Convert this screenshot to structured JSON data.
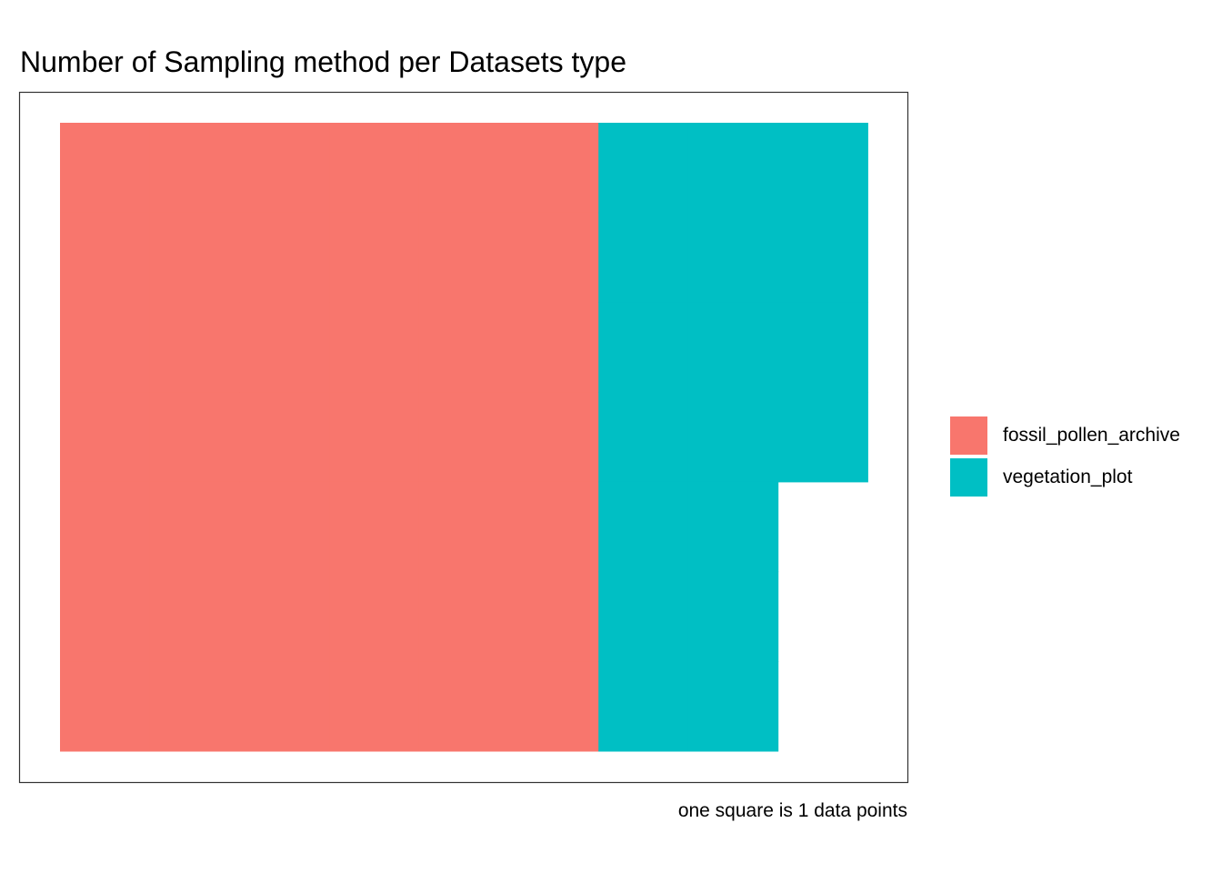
{
  "chart_data": {
    "type": "waffle",
    "title": "Number of Sampling method per Datasets type",
    "caption": "one square is 1 data points",
    "grid_rows": 7,
    "grid_cols": 9,
    "fill_order": "column-major, top to bottom",
    "series": [
      {
        "name": "fossil_pollen_archive",
        "value": 42,
        "color": "#F8766D"
      },
      {
        "name": "vegetation_plot",
        "value": 18,
        "color": "#00BFC4"
      }
    ],
    "legend_position": "right",
    "panel_border": true,
    "grid": false
  }
}
